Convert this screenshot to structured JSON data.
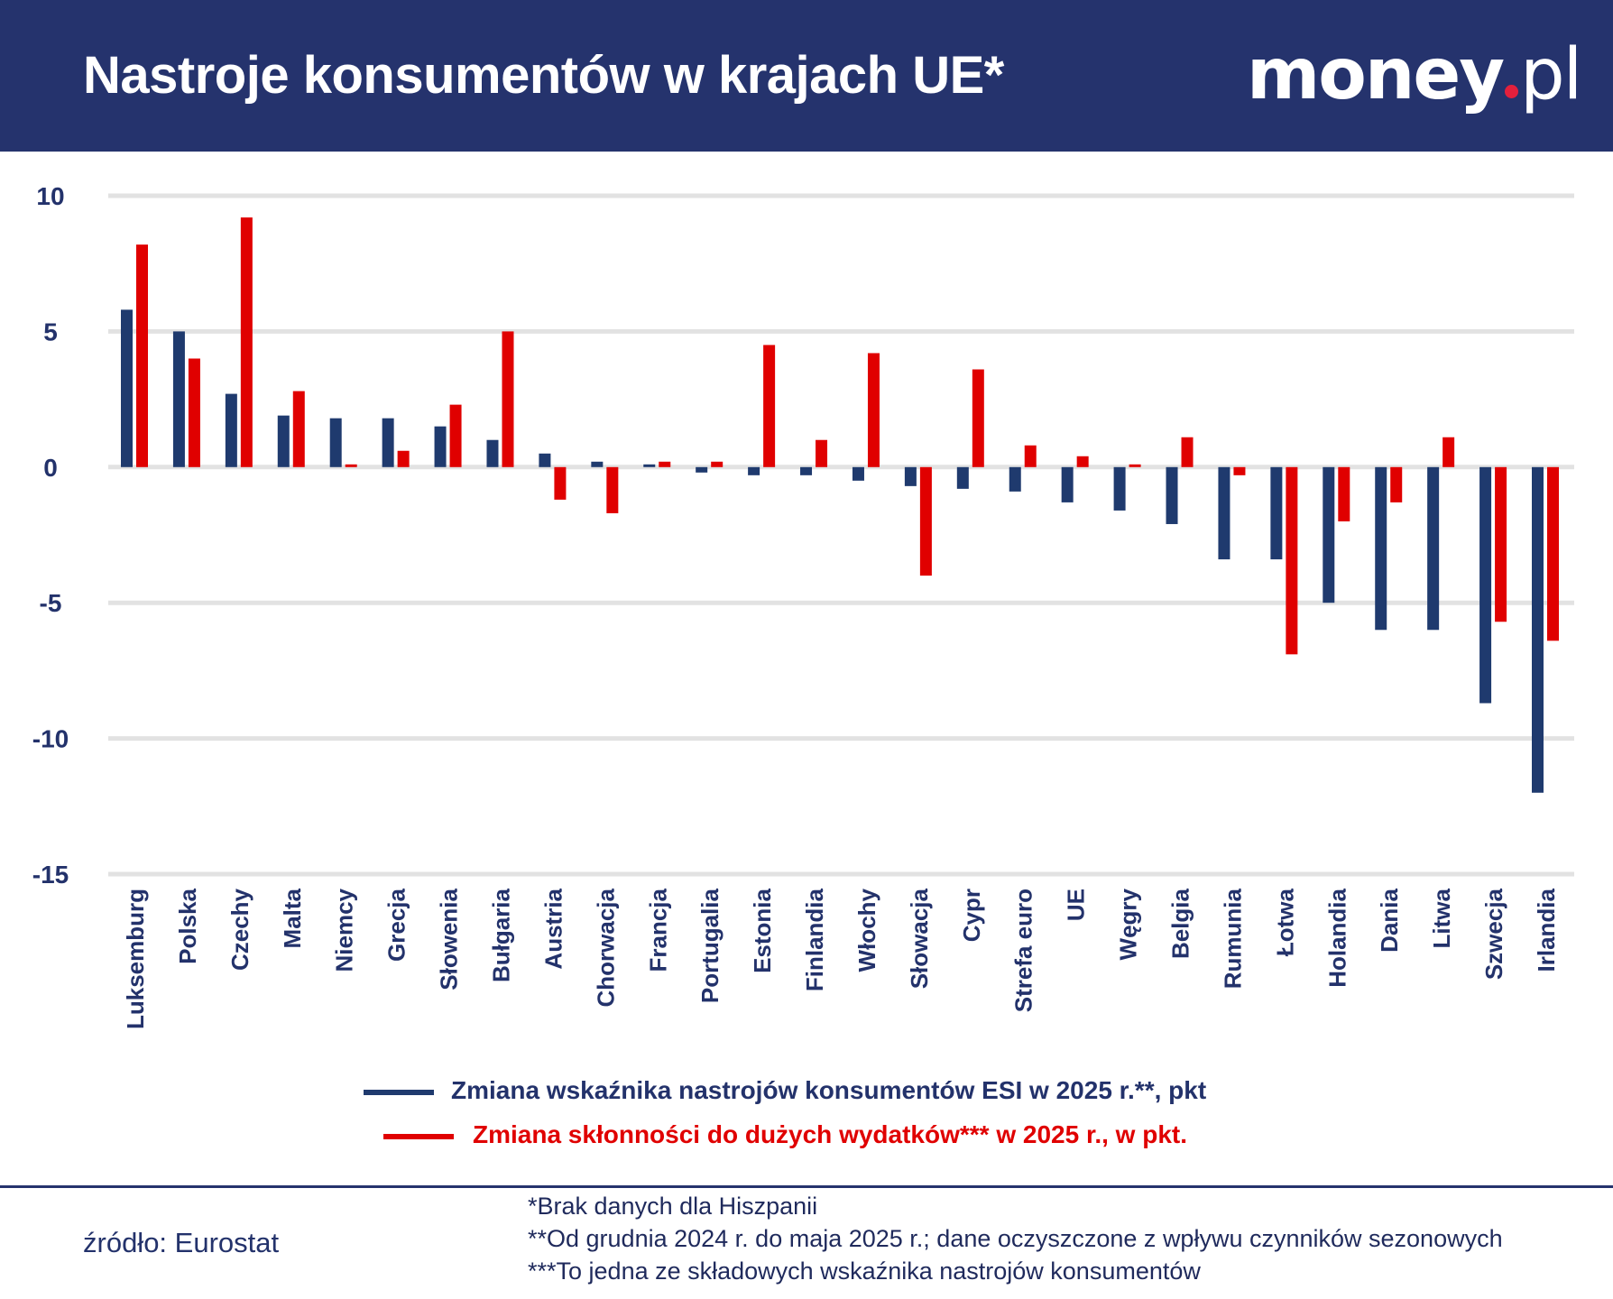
{
  "header": {
    "title": "Nastroje konsumentów w krajach UE*",
    "logo_text": "money.pl"
  },
  "colors": {
    "header_bg": "#25336d",
    "series_blue": "#1f3a6e",
    "series_red": "#e00000",
    "grid": "#e2e2e2",
    "logo_dot": "#e3203c"
  },
  "chart_data": {
    "type": "bar",
    "title": "Nastroje konsumentów w krajach UE*",
    "xlabel": "",
    "ylabel": "",
    "ylim": [
      -15,
      10
    ],
    "yticks": [
      10,
      5,
      0,
      -5,
      -10,
      -15
    ],
    "grid": true,
    "legend_position": "bottom",
    "categories": [
      "Luksemburg",
      "Polska",
      "Czechy",
      "Malta",
      "Niemcy",
      "Grecja",
      "Słowenia",
      "Bułgaria",
      "Austria",
      "Chorwacja",
      "Francja",
      "Portugalia",
      "Estonia",
      "Finlandia",
      "Włochy",
      "Słowacja",
      "Cypr",
      "Strefa euro",
      "UE",
      "Węgry",
      "Belgia",
      "Rumunia",
      "Łotwa",
      "Holandia",
      "Dania",
      "Litwa",
      "Szwecja",
      "Irlandia"
    ],
    "series": [
      {
        "name": "Zmiana wskaźnika nastrojów konsumentów ESI w 2025 r.**, pkt",
        "color": "#1f3a6e",
        "values": [
          5.8,
          5.0,
          2.7,
          1.9,
          1.8,
          1.8,
          1.5,
          1.0,
          0.5,
          0.2,
          0.1,
          -0.2,
          -0.3,
          -0.3,
          -0.5,
          -0.7,
          -0.8,
          -0.9,
          -1.3,
          -1.6,
          -2.1,
          -3.4,
          -3.4,
          -5.0,
          -6.0,
          -6.0,
          -8.7,
          -12.0
        ]
      },
      {
        "name": "Zmiana skłonności do dużych wydatków*** w 2025 r., w pkt.",
        "color": "#e00000",
        "values": [
          8.2,
          4.0,
          9.2,
          2.8,
          0.1,
          0.6,
          2.3,
          5.0,
          -1.2,
          -1.7,
          0.2,
          0.2,
          4.5,
          1.0,
          4.2,
          -4.0,
          3.6,
          0.8,
          0.4,
          0.1,
          1.1,
          -0.3,
          -6.9,
          -2.0,
          -1.3,
          1.1,
          -5.7,
          -6.4
        ]
      }
    ]
  },
  "footer": {
    "source": "źródło: Eurostat",
    "notes": [
      "*Brak danych dla Hiszpanii",
      "**Od grudnia 2024 r. do maja 2025 r.; dane oczyszczone z wpływu czynników sezonowych",
      "***To jedna ze składowych wskaźnika nastrojów konsumentów"
    ]
  }
}
